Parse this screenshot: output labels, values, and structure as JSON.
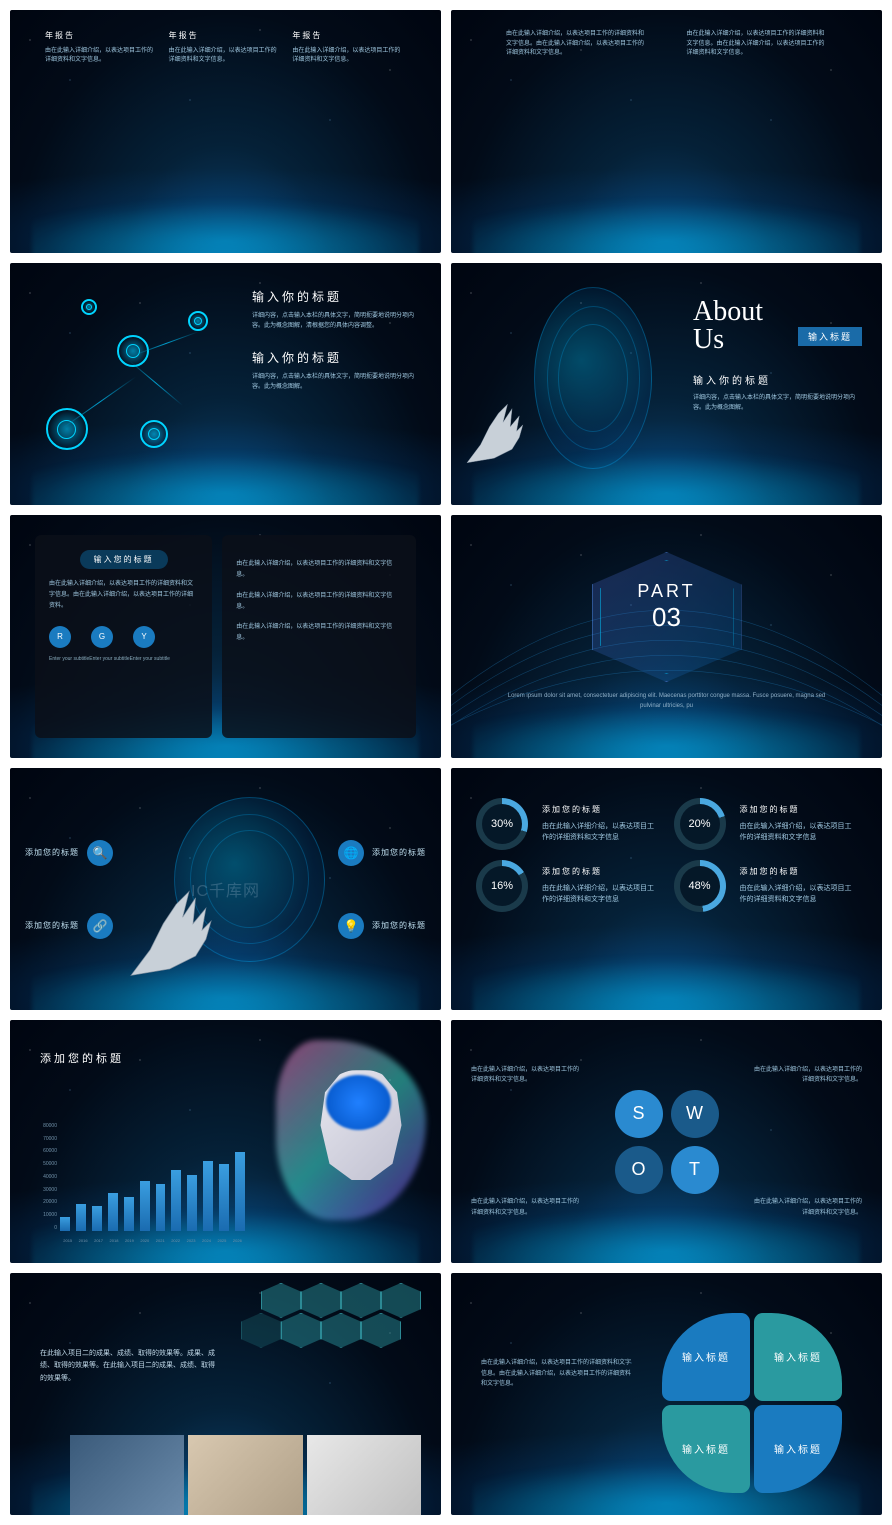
{
  "watermark": "IC千库网",
  "colors": {
    "accent": "#00c8ff",
    "blue": "#1a7bc0",
    "teal": "#2a9aa0",
    "dark_blue": "#0a3a6a"
  },
  "s1": {
    "cols": [
      {
        "title": "年报告",
        "body": "由在此输入详细介绍，以表达项目工作的详细资料和文字信息。"
      },
      {
        "title": "年报告",
        "body": "由在此输入详细介绍，以表达项目工作的详细资料和文字信息。"
      },
      {
        "title": "年报告",
        "body": "由在此输入详细介绍，以表达项目工作的详细资料和文字信息。"
      }
    ]
  },
  "s2": {
    "cols": [
      {
        "body": "由在此输入详细介绍，以表达项目工作的详细资料和文字信息。由在此输入详细介绍，以表达项目工作的详细资料和文字信息。"
      },
      {
        "body": "由在此输入详细介绍，以表达项目工作的详细资料和文字信息。由在此输入详细介绍，以表达项目工作的详细资料和文字信息。"
      }
    ]
  },
  "s3": {
    "title1": "输入你的标题",
    "body1": "详细内容，点击输入本栏的具体文字，简明扼要地说明分项内容。此为概念图解，清根据您的具体内容调整。",
    "title2": "输入你的标题",
    "body2": "详细内容，点击输入本栏的具体文字，简明扼要地说明分项内容。此为概念图解。"
  },
  "s4": {
    "about": "About\nUs",
    "badge": "输入标题",
    "title": "输入你的标题",
    "body": "详细内容，点击输入本栏的具体文字，简明扼要地说明分项内容。此为概念图解。"
  },
  "s5": {
    "box_title": "输入您的标题",
    "left_text": "由在此输入详细介绍，以表达项目工作的详细资料和文字信息。由在此输入详细介绍，以表达项目工作的详细资料。",
    "circles": [
      "R",
      "G",
      "Y"
    ],
    "subtitle": "Enter your subtitleEnter your subtitleEnter your subtitle",
    "right_texts": [
      "由在此输入详细介绍，以表达项目工作的详细资料和文字信息。",
      "由在此输入详细介绍，以表达项目工作的详细资料和文字信息。",
      "由在此输入详细介绍，以表达项目工作的详细资料和文字信息。"
    ]
  },
  "s6": {
    "part": "PART",
    "num": "03",
    "desc": "Lorem ipsum dolor sit amet, consectetuer adipiscing elit. Maecenas porttitor congue massa. Fusce posuere, magna sed pulvinar ultricies, pu"
  },
  "s7": {
    "items": [
      {
        "icon": "🔍",
        "label": "添加您的标题"
      },
      {
        "icon": "🌐",
        "label": "添加您的标题"
      },
      {
        "icon": "🔗",
        "label": "添加您的标题"
      },
      {
        "icon": "💡",
        "label": "添加您的标题"
      }
    ]
  },
  "s8": {
    "donuts": [
      {
        "pct": 30,
        "title": "添加您的标题",
        "body": "由在此输入详细介绍，以表达项目工作的详细资料和文字信息"
      },
      {
        "pct": 20,
        "title": "添加您的标题",
        "body": "由在此输入详细介绍，以表达项目工作的详细资料和文字信息"
      },
      {
        "pct": 16,
        "title": "添加您的标题",
        "body": "由在此输入详细介绍，以表达项目工作的详细资料和文字信息"
      },
      {
        "pct": 48,
        "title": "添加您的标题",
        "body": "由在此输入详细介绍，以表达项目工作的详细资料和文字信息"
      }
    ],
    "donut_color": "#4aa8e0",
    "donut_bg": "#1a3a4a"
  },
  "s9": {
    "title": "添加您的标题",
    "y_labels": [
      "80000",
      "70000",
      "60000",
      "50000",
      "40000",
      "30000",
      "20000",
      "10000",
      "0"
    ],
    "x_labels": [
      "2015",
      "2016",
      "2017",
      "2018",
      "2019",
      "2020",
      "2021",
      "2022",
      "2023",
      "2024",
      "2025",
      "2026"
    ],
    "bars": [
      15,
      30,
      28,
      42,
      38,
      55,
      52,
      68,
      62,
      78,
      74,
      88
    ],
    "bar_color": "#3a9ee0"
  },
  "s10": {
    "letters": [
      "S",
      "W",
      "O",
      "T"
    ],
    "colors": [
      "#2a8ad0",
      "#1a5a8a",
      "#1a5a8a",
      "#2a8ad0"
    ],
    "texts": [
      "由在此输入详细介绍，以表达项目工作的详细资料和文字信息。",
      "由在此输入详细介绍，以表达项目工作的详细资料和文字信息。",
      "由在此输入详细介绍，以表达项目工作的详细资料和文字信息。",
      "由在此输入详细介绍，以表达项目工作的详细资料和文字信息。"
    ]
  },
  "s11": {
    "text": "在此输入项目二的成果、成绩、取得的效果等。成果、成绩、取得的效果等。在此输入项目二的成果、成绩、取得的效果等。"
  },
  "s12": {
    "text": "由在此输入详细介绍，以表达项目工作的详细资料和文字信息。由在此输入详细介绍，以表达项目工作的详细资料和文字信息。",
    "petals": [
      "输入标题",
      "输入标题",
      "输入标题",
      "输入标题"
    ],
    "petal_colors": [
      "#1a7bc0",
      "#2a9aa0",
      "#2a9aa0",
      "#1a7bc0"
    ]
  }
}
